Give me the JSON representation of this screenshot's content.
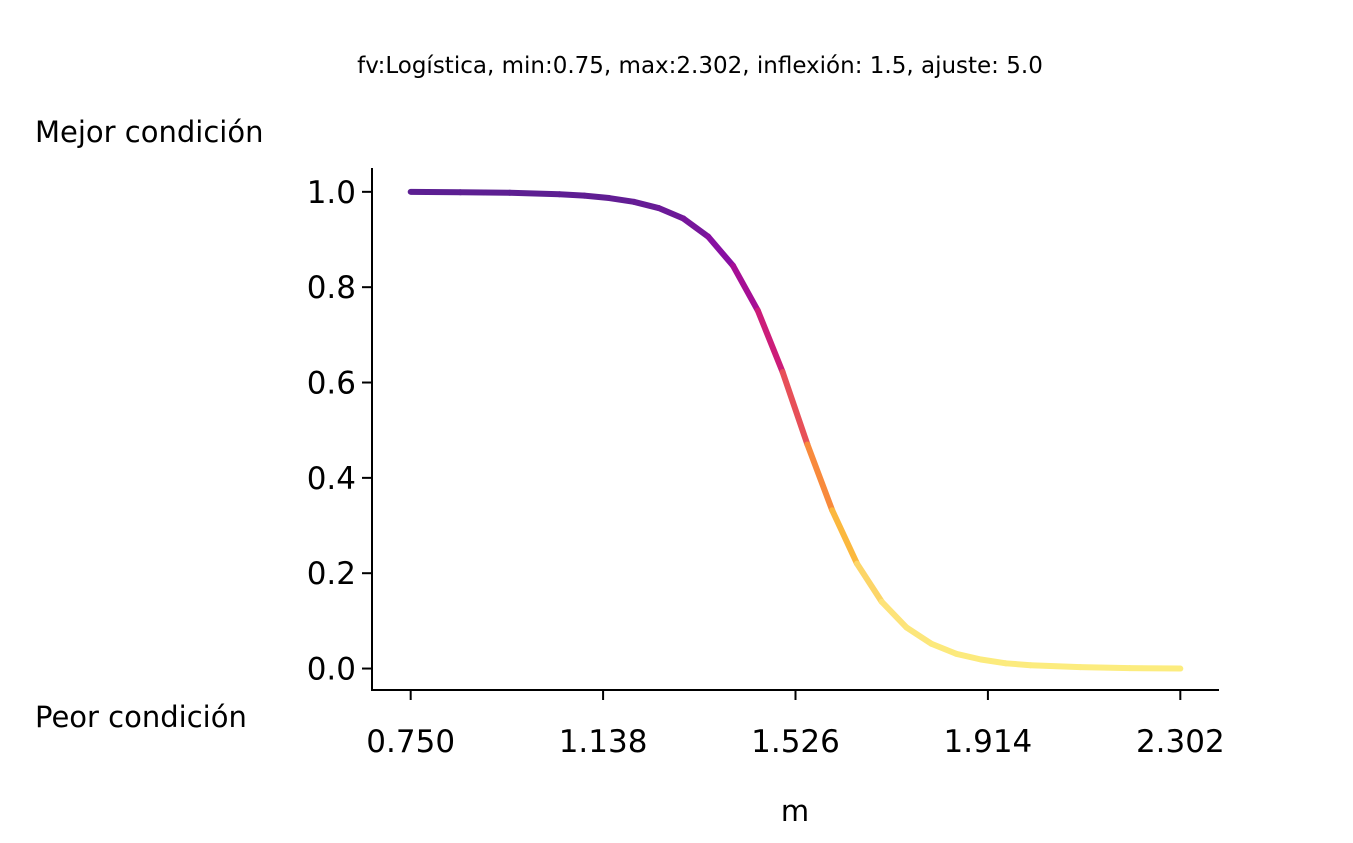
{
  "chart_data": {
    "type": "line",
    "title": "fv:Logística, min:0.75, max:2.302, inflexión: 1.5, ajuste: 5.0",
    "xlabel": "m",
    "ylabel_top": "Mejor condición",
    "ylabel_bottom": "Peor condición",
    "xlim": [
      0.672,
      2.38
    ],
    "ylim": [
      -0.045,
      1.05
    ],
    "x_ticks": [
      0.75,
      1.138,
      1.526,
      1.914,
      2.302
    ],
    "x_tick_labels": [
      "0.750",
      "1.138",
      "1.526",
      "1.914",
      "2.302"
    ],
    "y_ticks": [
      0.0,
      0.2,
      0.4,
      0.6,
      0.8,
      1.0
    ],
    "y_tick_labels": [
      "0.0",
      "0.2",
      "0.4",
      "0.6",
      "0.8",
      "1.0"
    ],
    "grid": false,
    "colormap": "plasma (truncated, purple to yellow)",
    "colormap_stops": [
      "#5c1f92",
      "#8f0da4",
      "#c6137f",
      "#e3465e",
      "#f7803c",
      "#fbb53a",
      "#fde078",
      "#fcec7e"
    ],
    "series": [
      {
        "x": [
          0.75,
          0.85,
          0.95,
          1.05,
          1.1,
          1.15,
          1.2,
          1.25,
          1.3,
          1.35,
          1.4,
          1.45,
          1.5,
          1.55,
          1.6,
          1.65,
          1.7,
          1.75,
          1.8,
          1.85,
          1.9,
          1.95,
          2.0,
          2.1,
          2.2,
          2.302
        ],
        "y": [
          1.0,
          0.999,
          0.998,
          0.995,
          0.992,
          0.987,
          0.979,
          0.966,
          0.944,
          0.906,
          0.845,
          0.751,
          0.622,
          0.47,
          0.332,
          0.22,
          0.14,
          0.086,
          0.052,
          0.031,
          0.019,
          0.011,
          0.007,
          0.003,
          0.001,
          0.0
        ]
      }
    ]
  }
}
